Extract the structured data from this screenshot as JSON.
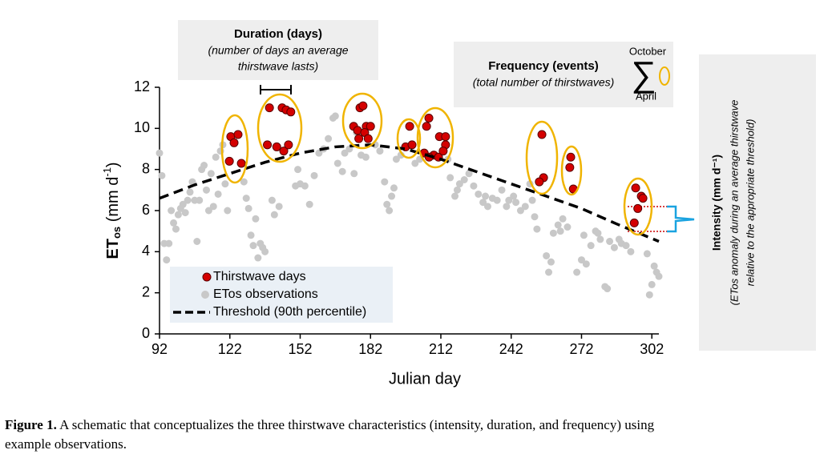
{
  "chart_data": {
    "type": "scatter",
    "xlabel": "Julian day",
    "ylabel": [
      "ET",
      "os",
      " (mm d",
      "-1",
      ")"
    ],
    "xlim": [
      92,
      305
    ],
    "ylim": [
      0,
      12
    ],
    "xticks": [
      92,
      122,
      152,
      182,
      212,
      242,
      272,
      302
    ],
    "yticks": [
      0,
      2,
      4,
      6,
      8,
      10,
      12
    ],
    "legend": "lower left",
    "series": [
      {
        "name": "ETos observations",
        "color": "#c8c8c8",
        "kind": "scatter",
        "x": [
          92,
          93,
          94,
          95,
          96,
          97,
          98,
          99,
          100,
          101,
          102,
          103,
          104,
          105,
          106,
          107,
          108,
          109,
          110,
          111,
          112,
          113,
          114,
          115,
          116,
          117,
          118,
          119,
          120,
          121,
          128,
          129,
          130,
          131,
          132,
          133,
          134,
          135,
          136,
          137,
          140,
          141,
          143,
          150,
          151,
          152,
          154,
          156,
          158,
          160,
          162,
          164,
          166,
          167,
          168,
          170,
          171,
          173,
          175,
          176,
          178,
          180,
          184,
          186,
          188,
          189,
          190,
          191,
          192,
          193,
          195,
          201,
          203,
          215,
          216,
          218,
          219,
          220,
          222,
          224,
          226,
          228,
          230,
          231,
          232,
          234,
          236,
          238,
          240,
          241,
          243,
          244,
          246,
          248,
          250,
          251,
          252,
          253,
          257,
          258,
          259,
          260,
          262,
          263,
          264,
          266,
          270,
          272,
          273,
          274,
          276,
          278,
          279,
          280,
          282,
          283,
          284,
          286,
          288,
          289,
          291,
          293,
          300,
          301,
          302,
          303,
          304,
          305
        ],
        "values": [
          8.8,
          7.7,
          4.4,
          3.6,
          4.4,
          6.0,
          5.4,
          5.1,
          5.8,
          6.1,
          6.3,
          5.9,
          6.5,
          6.9,
          7.4,
          6.5,
          4.5,
          6.5,
          8.0,
          8.2,
          7.0,
          6.0,
          7.8,
          6.2,
          8.6,
          6.8,
          8.9,
          9.2,
          7.3,
          6.0,
          7.4,
          6.6,
          6.1,
          4.8,
          4.3,
          5.6,
          3.7,
          4.4,
          4.2,
          4.0,
          6.5,
          5.8,
          6.2,
          7.2,
          8.0,
          7.3,
          7.2,
          6.3,
          7.7,
          8.8,
          9.0,
          9.5,
          10.5,
          10.6,
          8.3,
          7.9,
          8.8,
          9.0,
          7.8,
          9.8,
          8.7,
          8.6,
          9.2,
          8.9,
          7.4,
          6.3,
          6.0,
          6.7,
          7.1,
          8.5,
          8.7,
          8.3,
          8.5,
          8.5,
          7.6,
          6.7,
          7.0,
          7.3,
          7.5,
          7.8,
          7.2,
          6.8,
          6.4,
          6.7,
          6.2,
          6.6,
          6.5,
          7.0,
          6.2,
          6.5,
          6.7,
          6.4,
          6.0,
          6.2,
          7.3,
          6.5,
          5.7,
          5.1,
          3.8,
          3.0,
          3.5,
          4.9,
          5.3,
          5.0,
          5.6,
          5.2,
          3.0,
          3.6,
          4.8,
          3.4,
          4.3,
          5.0,
          4.9,
          4.6,
          2.3,
          2.2,
          4.5,
          4.2,
          4.6,
          4.4,
          4.3,
          4.0,
          3.9,
          1.9,
          2.4,
          3.3,
          3.0,
          2.8
        ]
      },
      {
        "name": "Thirstwave days",
        "color": "#d40000",
        "kind": "scatter",
        "x": [
          122.4,
          125.5,
          123.8,
          121.8,
          126.9,
          138.9,
          144.3,
          146,
          148,
          138,
          142,
          145,
          147,
          177.5,
          178.8,
          174.8,
          176.5,
          180.2,
          182,
          179.5,
          177,
          181,
          198.7,
          197,
          199.7,
          206.9,
          205.9,
          211.4,
          214,
          214,
          204.9,
          209,
          211,
          207,
          213,
          255.1,
          255.8,
          254,
          267.4,
          267,
          268.5,
          295.1,
          297.5,
          298.2,
          296,
          294.5
        ],
        "values": [
          9.6,
          9.7,
          9.3,
          8.4,
          8.3,
          11.0,
          11.0,
          10.9,
          10.8,
          9.2,
          9.1,
          8.9,
          9.2,
          11.0,
          11.1,
          10.1,
          9.9,
          10.1,
          10.1,
          9.8,
          9.5,
          9.5,
          10.1,
          9.1,
          9.2,
          10.5,
          10.1,
          9.6,
          9.6,
          9.2,
          8.8,
          8.7,
          8.6,
          8.6,
          8.9,
          9.7,
          7.6,
          7.4,
          8.6,
          8.1,
          7.05,
          7.1,
          6.7,
          6.6,
          6.1,
          5.4
        ]
      },
      {
        "name": "Threshold (90th percentile)",
        "color": "#000000",
        "kind": "dashed-line",
        "x": [
          92,
          107,
          122,
          137,
          152,
          167,
          182,
          197,
          212,
          227,
          242,
          257,
          272,
          287,
          305
        ],
        "values": [
          6.6,
          7.25,
          7.8,
          8.35,
          8.8,
          9.1,
          9.2,
          9.0,
          8.5,
          7.9,
          7.3,
          6.7,
          6.1,
          5.35,
          4.5
        ]
      }
    ],
    "annotations": {
      "duration": [
        "Duration (days)",
        "(number of days an average",
        "thirstwave lasts)"
      ],
      "frequency": [
        "Frequency (events)",
        "(total number of thirstwaves)",
        "October",
        "April",
        "∑"
      ],
      "intensity": [
        "Intensity (mm d⁻¹)",
        "(ETos anomaly during an average thirstwave",
        "relative to the appropriate threshold)"
      ]
    }
  },
  "caption": {
    "label": "Figure 1.",
    "text": [
      "A schematic that conceptualizes the three thirstwave characteristics (intensity, duration, and frequency) using",
      "example observations."
    ]
  }
}
